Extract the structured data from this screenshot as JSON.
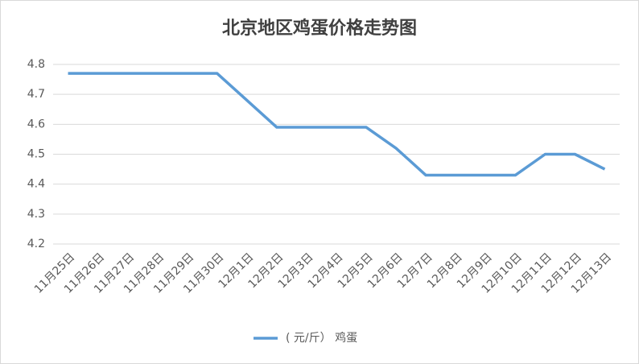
{
  "chart_data": {
    "type": "line",
    "title": "北京地区鸡蛋价格走势图",
    "categories": [
      "11月25日",
      "11月26日",
      "11月27日",
      "11月28日",
      "11月29日",
      "11月30日",
      "12月1日",
      "12月2日",
      "12月3日",
      "12月4日",
      "12月5日",
      "12月6日",
      "12月7日",
      "12月8日",
      "12月9日",
      "12月10日",
      "12月11日",
      "12月12日",
      "12月13日"
    ],
    "series": [
      {
        "name": "( 元/斤） 鸡蛋",
        "color": "#5b9bd5",
        "values": [
          4.77,
          4.77,
          4.77,
          4.77,
          4.77,
          4.77,
          4.68,
          4.59,
          4.59,
          4.59,
          4.59,
          4.52,
          4.43,
          4.43,
          4.43,
          4.43,
          4.5,
          4.5,
          4.45
        ]
      }
    ],
    "ylim": [
      4.2,
      4.8
    ],
    "yticks": [
      4.2,
      4.3,
      4.4,
      4.5,
      4.6,
      4.7,
      4.8
    ],
    "grid": true,
    "legend": "bottom"
  }
}
